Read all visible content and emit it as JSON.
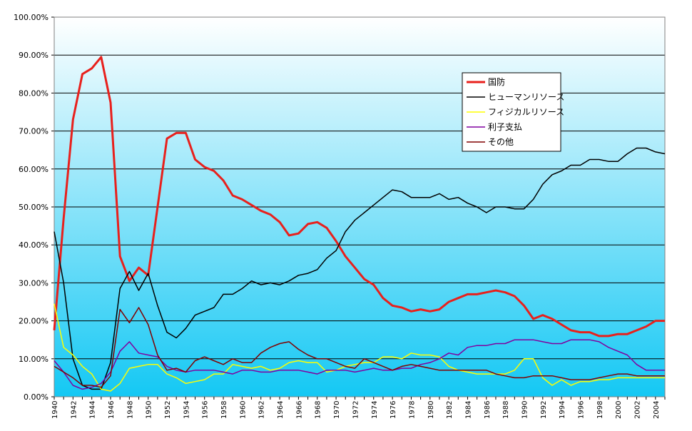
{
  "chart_data": {
    "type": "line",
    "title": "",
    "xlabel": "",
    "ylabel": "",
    "x": [
      1940,
      1941,
      1942,
      1943,
      1944,
      1945,
      1946,
      1947,
      1948,
      1949,
      1950,
      1951,
      1952,
      1953,
      1954,
      1955,
      1956,
      1957,
      1958,
      1959,
      1960,
      1961,
      1962,
      1963,
      1964,
      1965,
      1966,
      1967,
      1968,
      1969,
      1970,
      1971,
      1972,
      1973,
      1974,
      1975,
      1976,
      1977,
      1978,
      1979,
      1980,
      1981,
      1982,
      1983,
      1984,
      1985,
      1986,
      1987,
      1988,
      1989,
      1990,
      1991,
      1992,
      1993,
      1994,
      1995,
      1996,
      1997,
      1998,
      1999,
      2000,
      2001,
      2002,
      2003,
      2004,
      2005
    ],
    "x_tick_labels": [
      "1940",
      "1942",
      "1944",
      "1946",
      "1948",
      "1950",
      "1952",
      "1954",
      "1956",
      "1958",
      "1960",
      "1962",
      "1964",
      "1966",
      "1968",
      "1970",
      "1972",
      "1974",
      "1976",
      "1978",
      "1980",
      "1982",
      "1984",
      "1986",
      "1988",
      "1990",
      "1992",
      "1994",
      "1996",
      "1998",
      "2000",
      "2002",
      "2004"
    ],
    "y_tick_labels": [
      "0.00%",
      "10.00%",
      "20.00%",
      "30.00%",
      "40.00%",
      "50.00%",
      "60.00%",
      "70.00%",
      "80.00%",
      "90.00%",
      "100.00%"
    ],
    "ylim": [
      0,
      100
    ],
    "grid": true,
    "legend_position": "top-right",
    "series": [
      {
        "name": "国防",
        "color": "#e8201c",
        "width": 3,
        "values": [
          17.5,
          47,
          73,
          85,
          86.5,
          89.5,
          77.5,
          37,
          30.5,
          34,
          32,
          50,
          68,
          69.5,
          69.5,
          62.5,
          60.5,
          59.5,
          57,
          53,
          52,
          50.5,
          49,
          48,
          46,
          42.5,
          43,
          45.5,
          46,
          44.5,
          41,
          37,
          34,
          31,
          29.5,
          26,
          24,
          23.5,
          22.5,
          23,
          22.5,
          23,
          25,
          26,
          27,
          27,
          27.5,
          28,
          27.5,
          26.5,
          24,
          20.5,
          21.5,
          20.5,
          19,
          17.5,
          17,
          17,
          16,
          16,
          16.5,
          16.5,
          17.5,
          18.5,
          20,
          20
        ]
      },
      {
        "name": "ヒューマンリソース",
        "color": "#000000",
        "width": 1.5,
        "values": [
          43.5,
          30,
          10,
          3,
          2,
          2,
          9,
          28.5,
          33,
          28,
          32.5,
          24,
          17,
          15.5,
          18,
          21.5,
          22.5,
          23.5,
          27,
          27,
          28.5,
          30.5,
          29.5,
          30,
          29.5,
          30.5,
          32,
          32.5,
          33.5,
          36.5,
          38.5,
          43.5,
          46.5,
          48.5,
          50.5,
          52.5,
          54.5,
          54,
          52.5,
          52.5,
          52.5,
          53.5,
          52,
          52.5,
          51,
          50,
          48.5,
          50,
          50,
          49.5,
          49.5,
          52,
          56,
          58.5,
          59.5,
          61,
          61,
          62.5,
          62.5,
          62,
          62,
          64,
          65.5,
          65.5,
          64.5,
          64
        ]
      },
      {
        "name": "フィジカルリソース",
        "color": "#ffff00",
        "width": 1.5,
        "values": [
          24.5,
          13,
          11,
          8,
          6,
          2,
          1.5,
          3.5,
          7.5,
          8,
          8.5,
          8.5,
          6,
          5,
          3.5,
          4,
          4.5,
          6,
          6,
          8.5,
          8,
          7.5,
          8,
          7,
          7.5,
          9,
          9.5,
          9,
          9,
          6.5,
          7,
          8,
          8.5,
          9,
          9,
          10.5,
          10.5,
          10,
          11.5,
          11,
          11,
          10.5,
          8,
          7,
          6.5,
          6,
          6,
          6,
          6,
          7,
          10,
          10,
          5,
          3,
          4.5,
          3,
          4,
          4,
          4.5,
          4.5,
          5,
          5,
          5,
          5,
          5,
          5
        ]
      },
      {
        "name": "利子支払",
        "color": "#8000a0",
        "width": 1.5,
        "values": [
          9.5,
          6.5,
          3,
          2,
          2.5,
          3.5,
          6.5,
          12,
          14.5,
          11.5,
          11,
          10.5,
          8,
          7,
          6.5,
          7,
          7,
          7,
          6.5,
          6,
          7,
          7,
          6.5,
          6.5,
          7,
          7,
          7,
          6.5,
          6,
          7,
          7,
          7,
          6.5,
          7,
          7.5,
          7,
          7,
          7.5,
          7.5,
          8.5,
          9,
          10,
          11.5,
          11,
          13,
          13.5,
          13.5,
          14,
          14,
          15,
          15,
          15,
          14.5,
          14,
          14,
          15,
          15,
          15,
          14.5,
          13,
          12,
          11,
          8.5,
          7,
          7,
          7
        ]
      },
      {
        "name": "その他",
        "color": "#800000",
        "width": 1.5,
        "values": [
          8,
          6.5,
          5,
          3,
          3,
          2.5,
          5.5,
          23,
          19.5,
          23.5,
          19,
          11,
          7,
          7.5,
          6.5,
          9.5,
          10.5,
          9.5,
          8.5,
          10,
          9,
          9,
          11.5,
          13,
          14,
          14.5,
          12.5,
          11,
          10,
          10,
          9,
          8,
          7.5,
          10,
          9,
          8,
          7,
          8,
          8.5,
          8,
          7.5,
          7,
          7,
          7,
          7,
          7,
          7,
          6,
          5.5,
          5,
          5,
          5.5,
          5.5,
          5.5,
          5,
          4.5,
          4.5,
          4.5,
          5,
          5.5,
          6,
          6,
          5.5,
          5.5,
          5.5,
          5.5
        ]
      }
    ]
  }
}
